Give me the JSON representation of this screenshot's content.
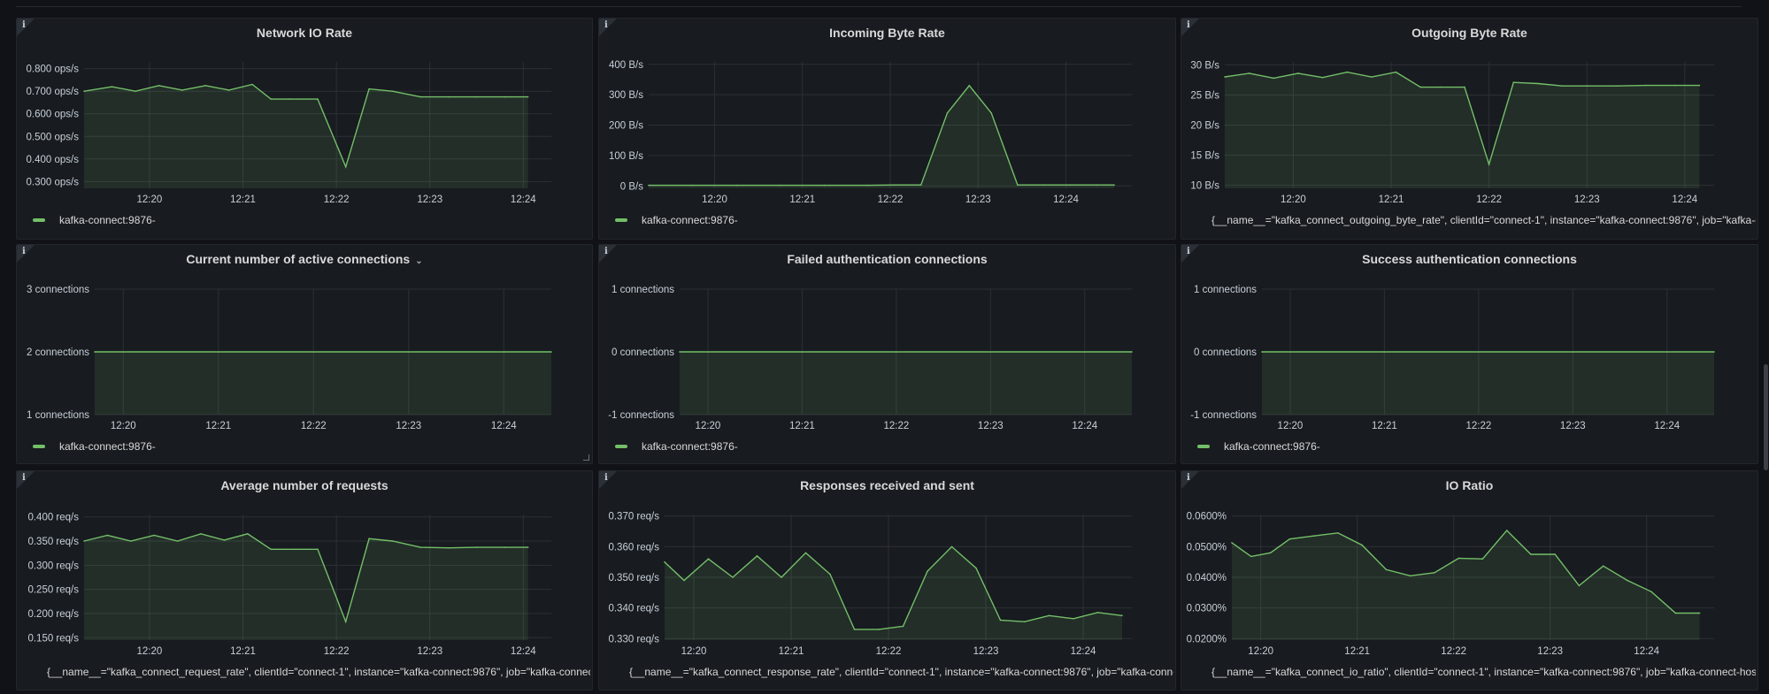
{
  "colors": {
    "series": "#73bf69",
    "grid": "#2c3035",
    "fill": "#73bf69"
  },
  "panels": [
    {
      "title": "Network IO Rate",
      "dropdown": false,
      "legend": "kafka-connect:9876-",
      "chart_data": {
        "type": "line",
        "yticks": [
          "0.800 ops/s",
          "0.700 ops/s",
          "0.600 ops/s",
          "0.500 ops/s",
          "0.400 ops/s",
          "0.300 ops/s"
        ],
        "ytick_values": [
          0.8,
          0.7,
          0.6,
          0.5,
          0.4,
          0.3
        ],
        "ylim": [
          0.27,
          0.83
        ],
        "xticks": [
          "12:20",
          "12:21",
          "12:22",
          "12:23",
          "12:24"
        ],
        "xtick_values": [
          0.7,
          1.7,
          2.7,
          3.7,
          4.7
        ],
        "xlim": [
          0,
          5.0
        ],
        "x": [
          0,
          0.3,
          0.55,
          0.8,
          1.05,
          1.3,
          1.55,
          1.8,
          2.0,
          2.2,
          2.5,
          2.8,
          3.05,
          3.3,
          3.6,
          3.9,
          4.2,
          4.5,
          4.75
        ],
        "y": [
          0.7,
          0.72,
          0.7,
          0.725,
          0.705,
          0.725,
          0.705,
          0.73,
          0.665,
          0.665,
          0.665,
          0.365,
          0.71,
          0.7,
          0.675,
          0.675,
          0.675,
          0.675,
          0.675
        ]
      }
    },
    {
      "title": "Incoming Byte Rate",
      "dropdown": false,
      "legend": "kafka-connect:9876-",
      "chart_data": {
        "type": "line",
        "yticks": [
          "400 B/s",
          "300 B/s",
          "200 B/s",
          "100 B/s",
          "0 B/s"
        ],
        "ytick_values": [
          400,
          300,
          200,
          100,
          0
        ],
        "ylim": [
          -8,
          408
        ],
        "xticks": [
          "12:20",
          "12:21",
          "12:22",
          "12:23",
          "12:24"
        ],
        "xtick_values": [
          0.75,
          1.75,
          2.75,
          3.75,
          4.75
        ],
        "xlim": [
          0,
          5.5
        ],
        "x": [
          0,
          0.5,
          1.0,
          1.5,
          2.0,
          2.5,
          2.8,
          3.1,
          3.4,
          3.65,
          3.9,
          4.2,
          4.5,
          4.8,
          5.1,
          5.3
        ],
        "y": [
          2,
          2,
          2,
          2,
          2,
          2,
          3,
          3,
          240,
          330,
          240,
          3,
          3,
          3,
          3,
          3
        ]
      }
    },
    {
      "title": "Outgoing Byte Rate",
      "dropdown": false,
      "legend": "{__name__=\"kafka_connect_outgoing_byte_rate\", clientId=\"connect-1\", instance=\"kafka-connect:9876\", job=\"kafka-c",
      "chart_data": {
        "type": "line",
        "yticks": [
          "30 B/s",
          "25 B/s",
          "20 B/s",
          "15 B/s",
          "10 B/s"
        ],
        "ytick_values": [
          30,
          25,
          20,
          15,
          10
        ],
        "ylim": [
          9.5,
          30.5
        ],
        "xticks": [
          "12:20",
          "12:21",
          "12:22",
          "12:23",
          "12:24"
        ],
        "xtick_values": [
          0.7,
          1.7,
          2.7,
          3.7,
          4.7
        ],
        "xlim": [
          0,
          5.0
        ],
        "x": [
          0,
          0.25,
          0.5,
          0.75,
          1.0,
          1.25,
          1.5,
          1.75,
          2.0,
          2.2,
          2.45,
          2.7,
          2.95,
          3.2,
          3.45,
          3.7,
          4.0,
          4.3,
          4.6,
          4.85
        ],
        "y": [
          28,
          28.6,
          27.8,
          28.6,
          27.9,
          28.8,
          28,
          28.8,
          26.3,
          26.3,
          26.3,
          13.5,
          27.1,
          26.9,
          26.5,
          26.5,
          26.5,
          26.6,
          26.6,
          26.6
        ]
      }
    },
    {
      "title": "Current number of active connections",
      "dropdown": true,
      "legend": "kafka-connect:9876-",
      "chart_data": {
        "type": "line",
        "yticks": [
          "3 connections",
          "2 connections",
          "1 connections"
        ],
        "ytick_values": [
          3,
          2,
          1
        ],
        "ylim": [
          1,
          3
        ],
        "xticks": [
          "12:20",
          "12:21",
          "12:22",
          "12:23",
          "12:24"
        ],
        "xtick_values": [
          0.3,
          1.3,
          2.3,
          3.3,
          4.3
        ],
        "xlim": [
          0,
          4.8
        ],
        "x": [
          0,
          4.8
        ],
        "y": [
          2,
          2
        ]
      }
    },
    {
      "title": "Failed authentication connections",
      "dropdown": false,
      "legend": "kafka-connect:9876-",
      "chart_data": {
        "type": "line",
        "yticks": [
          "1 connections",
          "0 connections",
          "-1 connections"
        ],
        "ytick_values": [
          1,
          0,
          -1
        ],
        "ylim": [
          -1,
          1
        ],
        "xticks": [
          "12:20",
          "12:21",
          "12:22",
          "12:23",
          "12:24"
        ],
        "xtick_values": [
          0.3,
          1.3,
          2.3,
          3.3,
          4.3
        ],
        "xlim": [
          0,
          4.8
        ],
        "x": [
          0,
          4.8
        ],
        "y": [
          0,
          0
        ]
      }
    },
    {
      "title": "Success authentication connections",
      "dropdown": false,
      "legend": "kafka-connect:9876-",
      "chart_data": {
        "type": "line",
        "yticks": [
          "1 connections",
          "0 connections",
          "-1 connections"
        ],
        "ytick_values": [
          1,
          0,
          -1
        ],
        "ylim": [
          -1,
          1
        ],
        "xticks": [
          "12:20",
          "12:21",
          "12:22",
          "12:23",
          "12:24"
        ],
        "xtick_values": [
          0.3,
          1.3,
          2.3,
          3.3,
          4.3
        ],
        "xlim": [
          0,
          4.8
        ],
        "x": [
          0,
          4.8
        ],
        "y": [
          0,
          0
        ]
      }
    },
    {
      "title": "Average number of requests",
      "dropdown": false,
      "legend": "{__name__=\"kafka_connect_request_rate\", clientId=\"connect-1\", instance=\"kafka-connect:9876\", job=\"kafka-connect",
      "chart_data": {
        "type": "line",
        "yticks": [
          "0.400 req/s",
          "0.350 req/s",
          "0.300 req/s",
          "0.250 req/s",
          "0.200 req/s",
          "0.150 req/s"
        ],
        "ytick_values": [
          0.4,
          0.35,
          0.3,
          0.25,
          0.2,
          0.15
        ],
        "ylim": [
          0.145,
          0.405
        ],
        "xticks": [
          "12:20",
          "12:21",
          "12:22",
          "12:23",
          "12:24"
        ],
        "xtick_values": [
          0.7,
          1.7,
          2.7,
          3.7,
          4.7
        ],
        "xlim": [
          0,
          5.0
        ],
        "x": [
          0,
          0.25,
          0.5,
          0.75,
          1.0,
          1.25,
          1.5,
          1.75,
          2.0,
          2.25,
          2.5,
          2.8,
          3.05,
          3.3,
          3.6,
          3.9,
          4.2,
          4.5,
          4.75
        ],
        "y": [
          0.35,
          0.362,
          0.35,
          0.362,
          0.35,
          0.365,
          0.352,
          0.365,
          0.333,
          0.333,
          0.333,
          0.183,
          0.355,
          0.35,
          0.337,
          0.336,
          0.337,
          0.337,
          0.337
        ]
      }
    },
    {
      "title": "Responses received and sent",
      "dropdown": false,
      "legend": "{__name__=\"kafka_connect_response_rate\", clientId=\"connect-1\", instance=\"kafka-connect:9876\", job=\"kafka-connect",
      "chart_data": {
        "type": "line",
        "yticks": [
          "0.370 req/s",
          "0.360 req/s",
          "0.350 req/s",
          "0.340 req/s",
          "0.330 req/s"
        ],
        "ytick_values": [
          0.37,
          0.36,
          0.35,
          0.34,
          0.33
        ],
        "ylim": [
          0.3295,
          0.3705
        ],
        "xticks": [
          "12:20",
          "12:21",
          "12:22",
          "12:23",
          "12:24"
        ],
        "xtick_values": [
          0.3,
          1.3,
          2.3,
          3.3,
          4.3
        ],
        "xlim": [
          0,
          4.8
        ],
        "x": [
          0,
          0.2,
          0.45,
          0.7,
          0.95,
          1.2,
          1.45,
          1.7,
          1.95,
          2.2,
          2.45,
          2.7,
          2.95,
          3.2,
          3.45,
          3.7,
          3.95,
          4.2,
          4.45,
          4.7
        ],
        "y": [
          0.355,
          0.349,
          0.356,
          0.35,
          0.357,
          0.35,
          0.358,
          0.351,
          0.333,
          0.333,
          0.334,
          0.352,
          0.36,
          0.353,
          0.336,
          0.3355,
          0.3375,
          0.3365,
          0.3385,
          0.3375
        ]
      }
    },
    {
      "title": "IO Ratio",
      "dropdown": false,
      "legend": "{__name__=\"kafka_connect_io_ratio\", clientId=\"connect-1\", instance=\"kafka-connect:9876\", job=\"kafka-connect-host",
      "chart_data": {
        "type": "line",
        "yticks": [
          "0.0600%",
          "0.0500%",
          "0.0400%",
          "0.0300%",
          "0.0200%"
        ],
        "ytick_values": [
          0.06,
          0.05,
          0.04,
          0.03,
          0.02
        ],
        "ylim": [
          0.0195,
          0.0605
        ],
        "xticks": [
          "12:20",
          "12:21",
          "12:22",
          "12:23",
          "12:24"
        ],
        "xtick_values": [
          0.3,
          1.3,
          2.3,
          3.3,
          4.3
        ],
        "xlim": [
          0,
          5.0
        ],
        "x": [
          0,
          0.2,
          0.4,
          0.6,
          0.85,
          1.1,
          1.35,
          1.6,
          1.85,
          2.1,
          2.35,
          2.6,
          2.85,
          3.1,
          3.35,
          3.6,
          3.85,
          4.1,
          4.35,
          4.6,
          4.85
        ],
        "y": [
          0.0513,
          0.0468,
          0.048,
          0.0525,
          0.0535,
          0.0545,
          0.0505,
          0.0425,
          0.0405,
          0.0415,
          0.0462,
          0.046,
          0.0553,
          0.0475,
          0.0475,
          0.0373,
          0.0437,
          0.039,
          0.0353,
          0.0283,
          0.0283
        ]
      }
    }
  ]
}
